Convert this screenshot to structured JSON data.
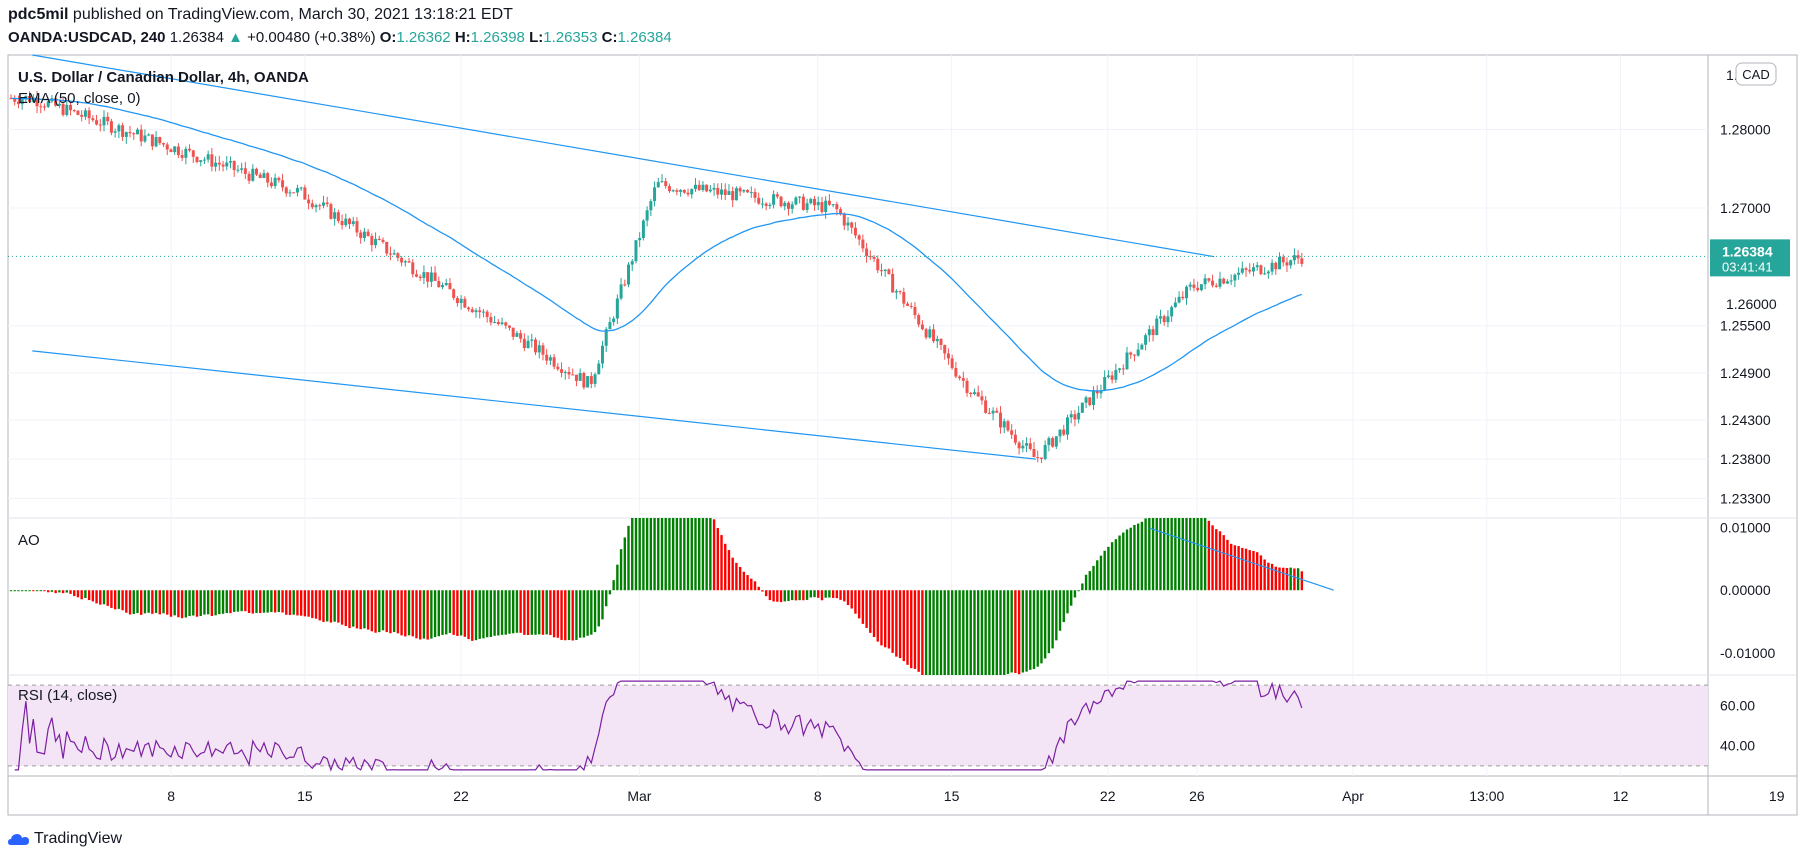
{
  "header": {
    "publisher": "pdc5mil",
    "published_text": "published on TradingView.com, March 30, 2021 13:18:21 EDT",
    "symbol": "OANDA:USDCAD, 240",
    "last": "1.26384",
    "change": "+0.00480 (+0.38%)",
    "o_label": "O:",
    "o": "1.26362",
    "h_label": "H:",
    "h": "1.26398",
    "l_label": "L:",
    "l": "1.26353",
    "c_label": "C:",
    "c": "1.26384"
  },
  "footer": {
    "brand": "TradingView"
  },
  "colors": {
    "up": "#26a69a",
    "down": "#ef5350",
    "ema": "#2196f3",
    "ao_up": "#008000",
    "ao_down": "#ff0000",
    "rsi": "#7b1fa2",
    "rsi_band": "#f3e5f5"
  },
  "chart_data": [
    {
      "type": "candlestick",
      "title": "U.S. Dollar / Canadian Dollar, 4h, OANDA",
      "indicator": "EMA (50, close, 0)",
      "currency": "CAD",
      "price_ticks": [
        "1.28000",
        "1.27000",
        "1.25500",
        "1.24900",
        "1.24300",
        "1.23800",
        "1.23300"
      ],
      "price_ticks_hidden": [
        "1.2",
        "1.26000"
      ],
      "x_tick_labels": [
        "8",
        "15",
        "22",
        "Mar",
        "8",
        "15",
        "22",
        "26",
        "Apr",
        "13:00",
        "12",
        "19"
      ],
      "ylim": [
        1.2305,
        1.2895
      ],
      "last_price": "1.26384",
      "countdown": "03:41:41",
      "key_points": [
        {
          "x": "Feb 1",
          "y": 1.284
        },
        {
          "x": "Feb 13",
          "y": 1.272
        },
        {
          "x": "Feb 26",
          "y": 1.2475
        },
        {
          "x": "Mar 1",
          "y": 1.273
        },
        {
          "x": "Mar 9",
          "y": 1.27
        },
        {
          "x": "Mar 15",
          "y": 1.247
        },
        {
          "x": "Mar 18",
          "y": 1.238
        },
        {
          "x": "Mar 25",
          "y": 1.26
        },
        {
          "x": "Mar 30",
          "y": 1.2638
        }
      ],
      "channel_upper": [
        {
          "x": "Feb 1",
          "y": 1.2895
        },
        {
          "x": "Mar 26",
          "y": 1.2638
        }
      ],
      "channel_lower": [
        {
          "x": "Feb 1",
          "y": 1.2518
        },
        {
          "x": "Mar 18",
          "y": 1.238
        }
      ]
    },
    {
      "type": "bar",
      "title": "AO",
      "ticks": [
        "0.01000",
        "0.00000",
        "-0.01000"
      ],
      "ylim": [
        -0.0135,
        0.0115
      ]
    },
    {
      "type": "line",
      "title": "RSI (14, close)",
      "ticks": [
        "60.00",
        "40.00"
      ],
      "bands": [
        30,
        70
      ],
      "ylim": [
        25,
        75
      ]
    }
  ]
}
